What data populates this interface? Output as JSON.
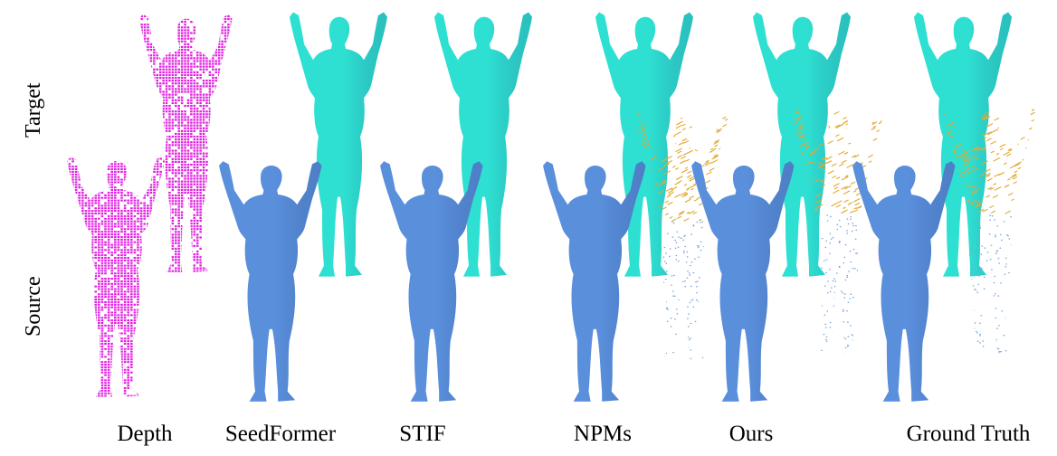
{
  "row_labels": {
    "target": "Target",
    "source": "Source"
  },
  "columns": [
    {
      "id": "depth",
      "label": "Depth"
    },
    {
      "id": "seedformer",
      "label": "SeedFormer"
    },
    {
      "id": "stif",
      "label": "STIF"
    },
    {
      "id": "npms",
      "label": "NPMs"
    },
    {
      "id": "ours",
      "label": "Ours"
    },
    {
      "id": "ground-truth",
      "label": "Ground Truth"
    }
  ],
  "colors": {
    "depth_points": "#e020e0",
    "target_mesh": "#2ee0d2",
    "source_mesh": "#5a8fdc",
    "flow_arrows": "#e2a832",
    "flow_points": "#7aa6dc"
  }
}
